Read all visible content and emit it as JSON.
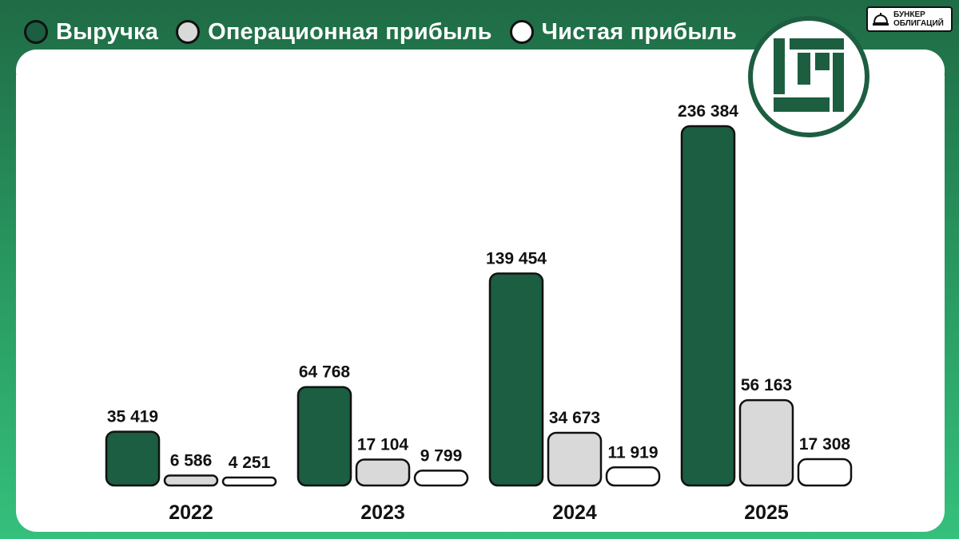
{
  "legend": [
    {
      "label": "Выручка",
      "color": "#1b5e41"
    },
    {
      "label": "Операционная прибыль",
      "color": "#d9d9d9"
    },
    {
      "label": "Чистая прибыль",
      "color": "#ffffff"
    }
  ],
  "brand": {
    "line1": "БУНКЕР",
    "line2": "ОБЛИГАЦИЙ",
    "icon": "bell-icon"
  },
  "logo": {
    "icon": "company-logo-icon"
  },
  "chart_data": {
    "type": "bar",
    "categories": [
      "2022",
      "2023",
      "2024",
      "2025"
    ],
    "series": [
      {
        "name": "Выручка",
        "values": [
          35419,
          64768,
          139454,
          236384
        ],
        "labels": [
          "35 419",
          "64 768",
          "139 454",
          "236 384"
        ],
        "color": "#1b5e41"
      },
      {
        "name": "Операционная прибыль",
        "values": [
          6586,
          17104,
          34673,
          56163
        ],
        "labels": [
          "6 586",
          "17 104",
          "34 673",
          "56 163"
        ],
        "color": "#d9d9d9"
      },
      {
        "name": "Чистая прибыль",
        "values": [
          4251,
          9799,
          11919,
          17308
        ],
        "labels": [
          "4 251",
          "9 799",
          "11 919",
          "17 308"
        ],
        "color": "#ffffff"
      }
    ],
    "grid": false,
    "legend_position": "top"
  }
}
